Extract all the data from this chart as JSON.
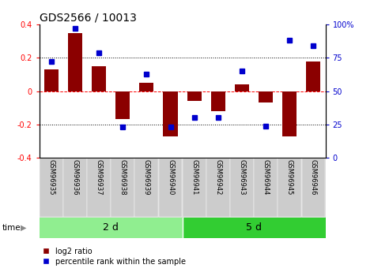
{
  "title": "GDS2566 / 10013",
  "samples": [
    "GSM96935",
    "GSM96936",
    "GSM96937",
    "GSM96938",
    "GSM96939",
    "GSM96940",
    "GSM96941",
    "GSM96942",
    "GSM96943",
    "GSM96944",
    "GSM96945",
    "GSM96946"
  ],
  "log2_ratio": [
    0.13,
    0.35,
    0.15,
    -0.17,
    0.05,
    -0.27,
    -0.06,
    -0.12,
    0.04,
    -0.07,
    -0.27,
    0.18
  ],
  "percentile_rank": [
    72,
    97,
    79,
    23,
    63,
    23,
    30,
    30,
    65,
    24,
    88,
    84
  ],
  "groups": [
    {
      "label": "2 d",
      "start": 0,
      "end": 6,
      "color": "#90ee90"
    },
    {
      "label": "5 d",
      "start": 6,
      "end": 12,
      "color": "#32cd32"
    }
  ],
  "bar_color": "#8b0000",
  "dot_color": "#0000cd",
  "ylim_left": [
    -0.4,
    0.4
  ],
  "ylim_right": [
    0,
    100
  ],
  "yticks_left": [
    -0.4,
    -0.2,
    0.0,
    0.2,
    0.4
  ],
  "yticks_right": [
    0,
    25,
    50,
    75,
    100
  ],
  "ytick_labels_right": [
    "0",
    "25",
    "50",
    "75",
    "100%"
  ],
  "title_fontsize": 10,
  "tick_fontsize": 7,
  "sample_fontsize": 6,
  "group_fontsize": 9,
  "legend_fontsize": 7,
  "legend_items": [
    {
      "label": "log2 ratio",
      "color": "#8b0000"
    },
    {
      "label": "percentile rank within the sample",
      "color": "#0000cd"
    }
  ],
  "time_label": "time",
  "background_color": "#ffffff",
  "sample_box_color": "#cccccc",
  "sample_box_edge": "#aaaaaa"
}
